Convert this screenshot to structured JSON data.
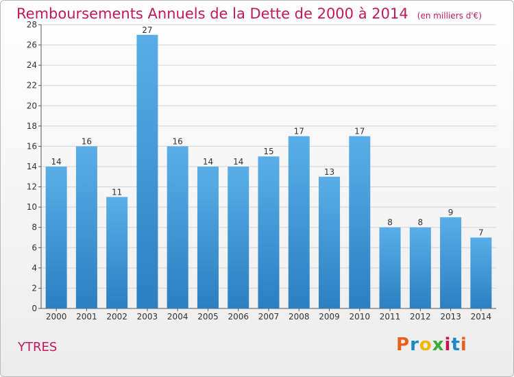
{
  "header": {
    "title": "Remboursements Annuels de la Dette de 2000 à 2014",
    "subtitle": "(en milliers d'€)"
  },
  "footer": {
    "city": "YTRES",
    "logo": "Proxiti"
  },
  "colors": {
    "title": "#c2185b",
    "bar_top": "#5aaee8",
    "bar_bottom": "#2c7fc0",
    "grid": "#d4d4d4"
  },
  "chart_data": {
    "type": "bar",
    "title": "Remboursements Annuels de la Dette de 2000 à 2014",
    "subtitle": "(en milliers d'€)",
    "xlabel": "",
    "ylabel": "",
    "categories": [
      "2000",
      "2001",
      "2002",
      "2003",
      "2004",
      "2005",
      "2006",
      "2007",
      "2008",
      "2009",
      "2010",
      "2011",
      "2012",
      "2013",
      "2014"
    ],
    "values": [
      14,
      16,
      11,
      27,
      16,
      14,
      14,
      15,
      17,
      13,
      17,
      8,
      8,
      9,
      7
    ],
    "ylim": [
      0,
      28
    ],
    "yticks": [
      0,
      2,
      4,
      6,
      8,
      10,
      12,
      14,
      16,
      18,
      20,
      22,
      24,
      26,
      28
    ],
    "grid": true,
    "data_labels": true
  }
}
